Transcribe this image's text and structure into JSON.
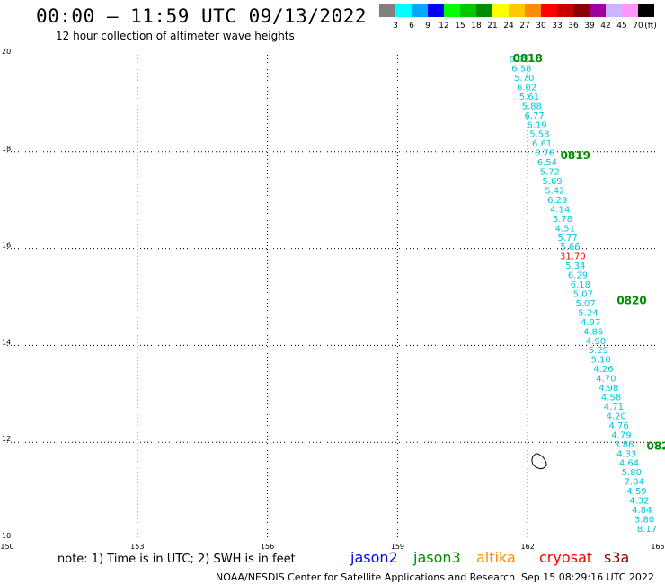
{
  "header": {
    "title": "00:00 – 11:59 UTC 09/13/2022",
    "subtitle": "12 hour collection of altimeter wave heights"
  },
  "colorbar": {
    "unit_label": "(ft)",
    "steps": [
      {
        "color": "#808080",
        "label": "3"
      },
      {
        "color": "#00ffff",
        "label": "6"
      },
      {
        "color": "#00a8ff",
        "label": "9"
      },
      {
        "color": "#0000ff",
        "label": "12"
      },
      {
        "color": "#00ff00",
        "label": "15"
      },
      {
        "color": "#00c800",
        "label": "18"
      },
      {
        "color": "#008c00",
        "label": "21"
      },
      {
        "color": "#ffff00",
        "label": "24"
      },
      {
        "color": "#ffc800",
        "label": "27"
      },
      {
        "color": "#ff8c00",
        "label": "30"
      },
      {
        "color": "#ff0000",
        "label": "33"
      },
      {
        "color": "#c80000",
        "label": "36"
      },
      {
        "color": "#8c0000",
        "label": "39"
      },
      {
        "color": "#a000a0",
        "label": "42"
      },
      {
        "color": "#c8b4ff",
        "label": "45"
      },
      {
        "color": "#ff96ff",
        "label": "70"
      },
      {
        "color": "#000000",
        "label": ""
      }
    ]
  },
  "map": {
    "lon_range": [
      150,
      165
    ],
    "lat_range": [
      10,
      20
    ],
    "x_ticks": [
      {
        "value": 150,
        "label": "150"
      },
      {
        "value": 153,
        "label": "153"
      },
      {
        "value": 156,
        "label": "156"
      },
      {
        "value": 159,
        "label": "159"
      },
      {
        "value": 162,
        "label": "162"
      },
      {
        "value": 165,
        "label": "165"
      }
    ],
    "y_ticks": [
      {
        "value": 20,
        "label": "20"
      },
      {
        "value": 18,
        "label": "18"
      },
      {
        "value": 16,
        "label": "16"
      },
      {
        "value": 14,
        "label": "14"
      },
      {
        "value": 12,
        "label": "12"
      },
      {
        "value": 10,
        "label": "10"
      }
    ],
    "track_color": "#00c8dc",
    "highlight_color": "#ff0000",
    "time_label_color": "#008c00",
    "track": {
      "start": {
        "lon": 161.8,
        "lat": 19.85
      },
      "end": {
        "lon": 164.75,
        "lat": 10.15
      },
      "values": [
        "6.52",
        "6.58",
        "5.70",
        "6.02",
        "5.61",
        "5.88",
        "6.77",
        "6.19",
        "5.58",
        "6.61",
        "6.76",
        "6.54",
        "5.72",
        "5.69",
        "5.42",
        "6.29",
        "4.14",
        "5.78",
        "4.51",
        "5.77",
        "5.66",
        "31.70",
        "5.34",
        "6.29",
        "6.18",
        "5.07",
        "5.07",
        "5.24",
        "4.97",
        "4.86",
        "4.90",
        "5.29",
        "5.10",
        "4.26",
        "4.70",
        "4.98",
        "4.58",
        "4.71",
        "4.20",
        "4.76",
        "4.79",
        "3.86",
        "4.33",
        "4.64",
        "5.80",
        "7.04",
        "4.59",
        "4.32",
        "4.84",
        "3.80",
        "8.17"
      ],
      "highlight_index": 21
    },
    "time_labels": [
      {
        "text": "0818",
        "lon": 162.0,
        "lat": 19.85
      },
      {
        "text": "0819",
        "lon": 163.1,
        "lat": 17.85
      },
      {
        "text": "0820",
        "lon": 164.4,
        "lat": 14.85
      },
      {
        "text": "082",
        "lon": 165.0,
        "lat": 11.85
      }
    ],
    "islands": [
      {
        "name": "island-outline",
        "lon": 162.25,
        "lat": 11.6
      }
    ]
  },
  "footer": {
    "note": "note:  1) Time is in UTC;  2) SWH is in feet",
    "credit": "NOAA/NESDIS Center for Satellite Applications and Research",
    "timestamp": "Sep 15 08:29:16 UTC 2022",
    "satellites": [
      {
        "name": "jason2",
        "color": "#0000ff"
      },
      {
        "name": "jason3",
        "color": "#008c00"
      },
      {
        "name": "altika",
        "color": "#ff8c00"
      },
      {
        "name": "cryosat",
        "color": "#ff0000"
      },
      {
        "name": "s3a",
        "color": "#8c0000"
      }
    ]
  }
}
